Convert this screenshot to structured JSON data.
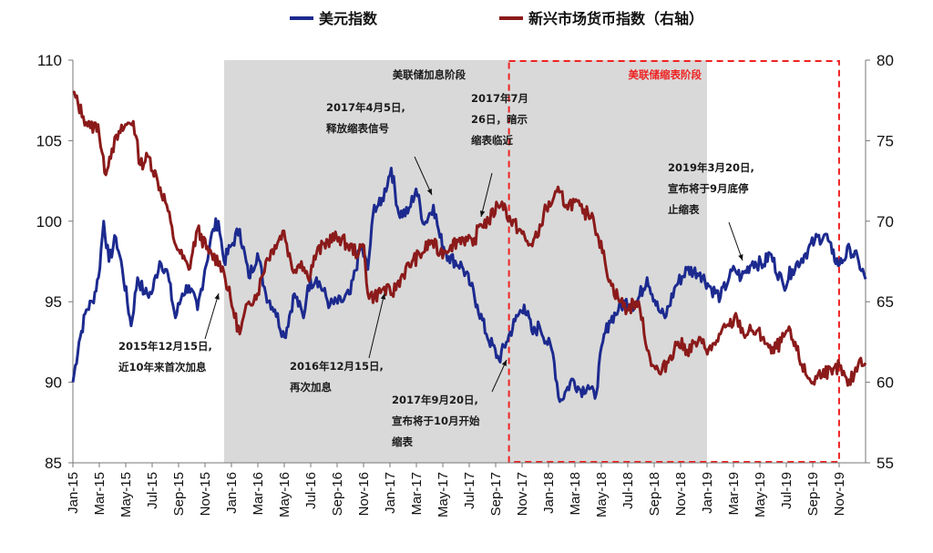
{
  "chart_data": {
    "type": "line",
    "legend": {
      "placement": "top-center",
      "items": [
        {
          "label": "美元指数",
          "color": "#1c2a8f"
        },
        {
          "label": "新兴市场货币指数（右轴）",
          "color": "#8b1a1a"
        }
      ]
    },
    "x_tick_labels": [
      "Jan-15",
      "Mar-15",
      "May-15",
      "Jul-15",
      "Sep-15",
      "Nov-15",
      "Jan-16",
      "Mar-16",
      "May-16",
      "Jul-16",
      "Sep-16",
      "Nov-16",
      "Jan-17",
      "Mar-17",
      "May-17",
      "Jul-17",
      "Sep-17",
      "Nov-17",
      "Jan-18",
      "Mar-18",
      "May-18",
      "Jul-18",
      "Sep-18",
      "Nov-18",
      "Jan-19",
      "Mar-19",
      "May-19",
      "Jul-19",
      "Sep-19",
      "Nov-19"
    ],
    "x_range": [
      "2015-01-01",
      "2019-12-31"
    ],
    "y_left": {
      "min": 85,
      "max": 110,
      "ticks": [
        85,
        90,
        95,
        100,
        105,
        110
      ]
    },
    "y_right": {
      "min": 55,
      "max": 80,
      "ticks": [
        55,
        60,
        65,
        70,
        75,
        80
      ]
    },
    "grid": false,
    "series": [
      {
        "name": "美元指数",
        "axis": "left",
        "color": "#1c2a8f",
        "points": [
          [
            "2015-01-01",
            90.0
          ],
          [
            "2015-01-15",
            92.5
          ],
          [
            "2015-02-01",
            94.5
          ],
          [
            "2015-02-15",
            95.0
          ],
          [
            "2015-03-01",
            96.5
          ],
          [
            "2015-03-13",
            100.0
          ],
          [
            "2015-03-25",
            97.5
          ],
          [
            "2015-04-10",
            99.0
          ],
          [
            "2015-04-25",
            97.0
          ],
          [
            "2015-05-15",
            93.5
          ],
          [
            "2015-05-30",
            96.5
          ],
          [
            "2015-06-15",
            95.5
          ],
          [
            "2015-07-01",
            95.5
          ],
          [
            "2015-07-20",
            97.5
          ],
          [
            "2015-08-05",
            97.0
          ],
          [
            "2015-08-25",
            94.0
          ],
          [
            "2015-09-10",
            95.5
          ],
          [
            "2015-09-25",
            96.0
          ],
          [
            "2015-10-15",
            94.5
          ],
          [
            "2015-11-01",
            97.0
          ],
          [
            "2015-11-20",
            99.5
          ],
          [
            "2015-12-02",
            100.0
          ],
          [
            "2015-12-15",
            97.5
          ],
          [
            "2016-01-01",
            98.5
          ],
          [
            "2016-01-20",
            99.5
          ],
          [
            "2016-02-10",
            96.5
          ],
          [
            "2016-03-01",
            98.0
          ],
          [
            "2016-03-20",
            95.5
          ],
          [
            "2016-04-10",
            94.5
          ],
          [
            "2016-05-02",
            92.8
          ],
          [
            "2016-05-25",
            95.5
          ],
          [
            "2016-06-15",
            94.0
          ],
          [
            "2016-06-25",
            96.0
          ],
          [
            "2016-07-15",
            96.5
          ],
          [
            "2016-08-15",
            94.8
          ],
          [
            "2016-09-10",
            95.0
          ],
          [
            "2016-10-01",
            95.5
          ],
          [
            "2016-10-25",
            98.5
          ],
          [
            "2016-11-10",
            97.0
          ],
          [
            "2016-11-25",
            101.0
          ],
          [
            "2016-12-10",
            101.0
          ],
          [
            "2017-01-03",
            103.3
          ],
          [
            "2017-01-20",
            100.5
          ],
          [
            "2017-02-10",
            100.5
          ],
          [
            "2017-03-01",
            102.0
          ],
          [
            "2017-03-20",
            99.8
          ],
          [
            "2017-04-10",
            101.0
          ],
          [
            "2017-04-25",
            99.0
          ],
          [
            "2017-05-15",
            97.8
          ],
          [
            "2017-06-15",
            97.2
          ],
          [
            "2017-07-05",
            96.0
          ],
          [
            "2017-07-20",
            94.8
          ],
          [
            "2017-08-10",
            93.0
          ],
          [
            "2017-09-08",
            91.4
          ],
          [
            "2017-09-25",
            92.5
          ],
          [
            "2017-10-15",
            93.8
          ],
          [
            "2017-11-05",
            94.8
          ],
          [
            "2017-11-25",
            93.0
          ],
          [
            "2017-12-10",
            93.5
          ],
          [
            "2018-01-10",
            91.8
          ],
          [
            "2018-01-26",
            88.8
          ],
          [
            "2018-02-10",
            89.5
          ],
          [
            "2018-02-25",
            90.2
          ],
          [
            "2018-03-15",
            89.5
          ],
          [
            "2018-04-01",
            89.8
          ],
          [
            "2018-04-17",
            89.0
          ],
          [
            "2018-05-05",
            92.5
          ],
          [
            "2018-05-20",
            93.8
          ],
          [
            "2018-06-10",
            94.5
          ],
          [
            "2018-06-25",
            95.0
          ],
          [
            "2018-07-20",
            94.8
          ],
          [
            "2018-08-15",
            96.5
          ],
          [
            "2018-09-10",
            94.5
          ],
          [
            "2018-09-25",
            94.0
          ],
          [
            "2018-10-20",
            96.0
          ],
          [
            "2018-11-15",
            97.0
          ],
          [
            "2018-12-15",
            96.8
          ],
          [
            "2019-01-10",
            95.8
          ],
          [
            "2019-01-31",
            95.3
          ],
          [
            "2019-02-20",
            96.5
          ],
          [
            "2019-03-05",
            97.0
          ],
          [
            "2019-03-20",
            96.5
          ],
          [
            "2019-04-15",
            97.5
          ],
          [
            "2019-05-10",
            97.3
          ],
          [
            "2019-05-25",
            98.0
          ],
          [
            "2019-06-25",
            96.0
          ],
          [
            "2019-07-15",
            97.0
          ],
          [
            "2019-08-15",
            98.0
          ],
          [
            "2019-09-05",
            98.8
          ],
          [
            "2019-09-30",
            99.2
          ],
          [
            "2019-10-15",
            98.0
          ],
          [
            "2019-11-01",
            97.3
          ],
          [
            "2019-11-25",
            98.3
          ],
          [
            "2019-12-15",
            97.5
          ],
          [
            "2019-12-31",
            96.4
          ]
        ]
      },
      {
        "name": "新兴市场货币指数（右轴）",
        "axis": "right",
        "color": "#8b1a1a",
        "points": [
          [
            "2015-01-01",
            78.0
          ],
          [
            "2015-01-25",
            76.5
          ],
          [
            "2015-02-10",
            75.8
          ],
          [
            "2015-02-28",
            76.0
          ],
          [
            "2015-03-15",
            73.0
          ],
          [
            "2015-04-01",
            74.5
          ],
          [
            "2015-04-20",
            75.5
          ],
          [
            "2015-05-05",
            76.0
          ],
          [
            "2015-05-20",
            76.2
          ],
          [
            "2015-06-05",
            73.5
          ],
          [
            "2015-06-25",
            74.0
          ],
          [
            "2015-07-15",
            72.5
          ],
          [
            "2015-08-05",
            71.0
          ],
          [
            "2015-08-20",
            69.0
          ],
          [
            "2015-09-05",
            68.0
          ],
          [
            "2015-09-25",
            67.0
          ],
          [
            "2015-10-15",
            69.5
          ],
          [
            "2015-11-10",
            68.0
          ],
          [
            "2015-12-05",
            67.5
          ],
          [
            "2015-12-15",
            66.8
          ],
          [
            "2016-01-05",
            64.5
          ],
          [
            "2016-01-20",
            63.0
          ],
          [
            "2016-02-10",
            65.0
          ],
          [
            "2016-03-01",
            65.5
          ],
          [
            "2016-03-20",
            67.5
          ],
          [
            "2016-04-10",
            68.5
          ],
          [
            "2016-05-01",
            69.4
          ],
          [
            "2016-05-20",
            67.0
          ],
          [
            "2016-06-10",
            67.5
          ],
          [
            "2016-06-25",
            66.5
          ],
          [
            "2016-07-15",
            68.0
          ],
          [
            "2016-08-10",
            68.8
          ],
          [
            "2016-09-05",
            69.0
          ],
          [
            "2016-09-25",
            68.5
          ],
          [
            "2016-10-20",
            68.0
          ],
          [
            "2016-11-01",
            68.5
          ],
          [
            "2016-11-10",
            65.5
          ],
          [
            "2016-11-25",
            65.3
          ],
          [
            "2016-12-15",
            65.8
          ],
          [
            "2017-01-05",
            65.5
          ],
          [
            "2017-01-25",
            66.5
          ],
          [
            "2017-02-20",
            67.5
          ],
          [
            "2017-03-15",
            68.0
          ],
          [
            "2017-04-05",
            68.8
          ],
          [
            "2017-04-25",
            68.0
          ],
          [
            "2017-05-20",
            68.5
          ],
          [
            "2017-06-15",
            69.0
          ],
          [
            "2017-07-10",
            68.5
          ],
          [
            "2017-07-26",
            69.8
          ],
          [
            "2017-08-15",
            70.0
          ],
          [
            "2017-09-05",
            71.0
          ],
          [
            "2017-09-15",
            71.2
          ],
          [
            "2017-10-05",
            70.0
          ],
          [
            "2017-10-25",
            69.5
          ],
          [
            "2017-11-15",
            68.5
          ],
          [
            "2017-12-05",
            69.0
          ],
          [
            "2017-12-20",
            70.5
          ],
          [
            "2018-01-10",
            71.3
          ],
          [
            "2018-01-25",
            71.8
          ],
          [
            "2018-02-10",
            71.0
          ],
          [
            "2018-03-01",
            71.2
          ],
          [
            "2018-03-20",
            70.5
          ],
          [
            "2018-04-10",
            70.5
          ],
          [
            "2018-04-25",
            69.0
          ],
          [
            "2018-05-10",
            67.5
          ],
          [
            "2018-05-25",
            66.0
          ],
          [
            "2018-06-15",
            65.0
          ],
          [
            "2018-06-30",
            64.5
          ],
          [
            "2018-07-20",
            65.0
          ],
          [
            "2018-08-05",
            64.0
          ],
          [
            "2018-08-15",
            62.0
          ],
          [
            "2018-08-31",
            61.0
          ],
          [
            "2018-09-15",
            60.5
          ],
          [
            "2018-10-05",
            61.5
          ],
          [
            "2018-10-25",
            62.5
          ],
          [
            "2018-11-15",
            62.0
          ],
          [
            "2018-12-10",
            62.5
          ],
          [
            "2019-01-10",
            62.0
          ],
          [
            "2019-01-31",
            63.0
          ],
          [
            "2019-02-20",
            63.5
          ],
          [
            "2019-03-10",
            64.0
          ],
          [
            "2019-03-25",
            63.0
          ],
          [
            "2019-04-15",
            63.2
          ],
          [
            "2019-05-10",
            62.8
          ],
          [
            "2019-05-28",
            61.8
          ],
          [
            "2019-06-20",
            62.5
          ],
          [
            "2019-07-05",
            63.2
          ],
          [
            "2019-07-25",
            62.0
          ],
          [
            "2019-08-15",
            60.5
          ],
          [
            "2019-09-01",
            60.0
          ],
          [
            "2019-09-25",
            60.8
          ],
          [
            "2019-10-15",
            60.5
          ],
          [
            "2019-11-01",
            61.0
          ],
          [
            "2019-11-20",
            59.8
          ],
          [
            "2019-12-05",
            60.5
          ],
          [
            "2019-12-20",
            61.5
          ],
          [
            "2019-12-31",
            61.2
          ]
        ]
      }
    ],
    "shaded_regions": [
      {
        "label": "美联储加息阶段",
        "start": "2015-12-15",
        "end": "2018-12-31",
        "fill": "#d9d9d9"
      }
    ],
    "dashed_regions": [
      {
        "label": "美联储缩表阶段",
        "start": "2017-10-01",
        "end": "2019-10-31",
        "color": "#ee2222"
      }
    ],
    "annotations": [
      {
        "lines": [
          "2015年12月15日,",
          "近10年来首次加息"
        ],
        "target": "2015-12-15",
        "series_axis": "right"
      },
      {
        "lines": [
          "2016年12月15日,",
          "再次加息"
        ],
        "target": "2016-12-15",
        "series_axis": "right"
      },
      {
        "lines": [
          "2017年4月5日,",
          "释放缩表信号"
        ],
        "target": "2017-04-05",
        "series_axis": "left"
      },
      {
        "lines": [
          "2017年7月",
          "26日，暗示",
          "缩表临近"
        ],
        "target": "2017-07-26",
        "series_axis": "right"
      },
      {
        "lines": [
          "2017年9月20日,",
          "宣布将于10月开始",
          "缩表"
        ],
        "target": "2017-09-20",
        "series_axis": "left"
      },
      {
        "lines": [
          "2019年3月20日,",
          "宣布将于9月底停",
          "止缩表"
        ],
        "target": "2019-03-20",
        "series_axis": "left"
      }
    ]
  }
}
